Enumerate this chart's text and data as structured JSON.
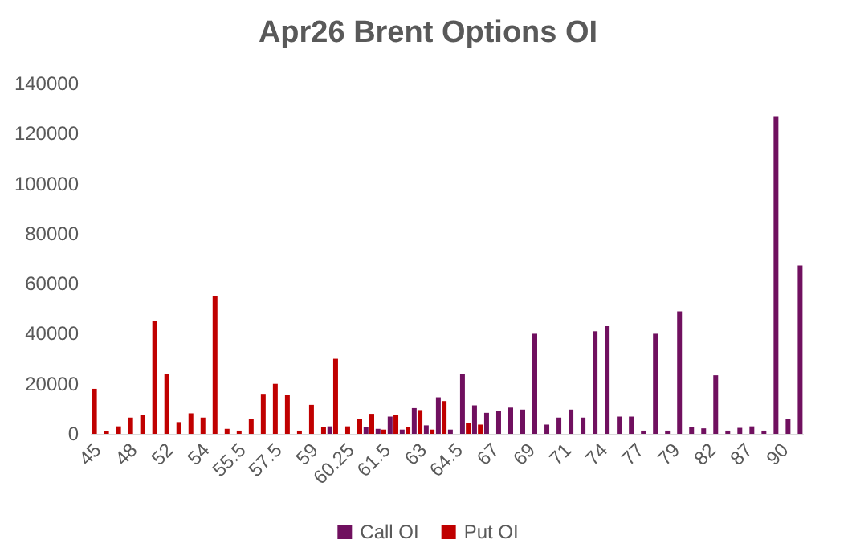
{
  "chart_data": {
    "type": "bar",
    "title": "Apr26 Brent Options OI",
    "categories": [
      "45",
      null,
      null,
      "48",
      null,
      null,
      "52",
      null,
      null,
      "54",
      null,
      null,
      "55.5",
      null,
      null,
      "57.5",
      null,
      null,
      "59",
      null,
      null,
      "60.25",
      null,
      null,
      "61.5",
      null,
      null,
      "63",
      null,
      null,
      "64.5",
      null,
      null,
      "67",
      null,
      null,
      "69",
      null,
      null,
      "71",
      null,
      null,
      "74",
      null,
      null,
      "77",
      null,
      null,
      "79",
      null,
      null,
      "82",
      null,
      null,
      "87",
      null,
      null,
      "90",
      null
    ],
    "series": [
      {
        "name": "Call OI",
        "color": "#70105f",
        "values": [
          null,
          null,
          null,
          null,
          null,
          null,
          null,
          null,
          null,
          null,
          null,
          null,
          null,
          null,
          null,
          null,
          null,
          null,
          null,
          3000,
          null,
          null,
          2800,
          2000,
          6900,
          1700,
          10300,
          3400,
          14600,
          1700,
          24000,
          11400,
          8400,
          9000,
          10500,
          9700,
          40000,
          3700,
          6500,
          9700,
          6500,
          41000,
          43000,
          6900,
          6900,
          1300,
          40000,
          1300,
          49000,
          2600,
          2200,
          23400,
          1300,
          2400,
          3000,
          1300,
          127000,
          5800,
          67300
        ]
      },
      {
        "name": "Put OI",
        "color": "#c00000",
        "values": [
          18000,
          1000,
          3000,
          6500,
          7700,
          45000,
          24000,
          4700,
          8200,
          6500,
          55000,
          2000,
          1300,
          6000,
          16000,
          20000,
          15500,
          1300,
          11600,
          2600,
          30000,
          3000,
          5800,
          8000,
          1700,
          7500,
          2600,
          9500,
          1700,
          13100,
          null,
          4500,
          3700,
          null,
          null,
          null,
          null,
          null,
          null,
          null,
          null,
          null,
          null,
          null,
          null,
          null,
          null,
          null,
          null,
          null,
          null,
          null,
          null,
          null,
          null,
          null,
          null,
          null,
          null
        ]
      }
    ],
    "ylim": [
      0,
      140000
    ],
    "yticks": [
      0,
      20000,
      40000,
      60000,
      80000,
      100000,
      120000,
      140000
    ],
    "grid": false,
    "legend": "bottom"
  }
}
